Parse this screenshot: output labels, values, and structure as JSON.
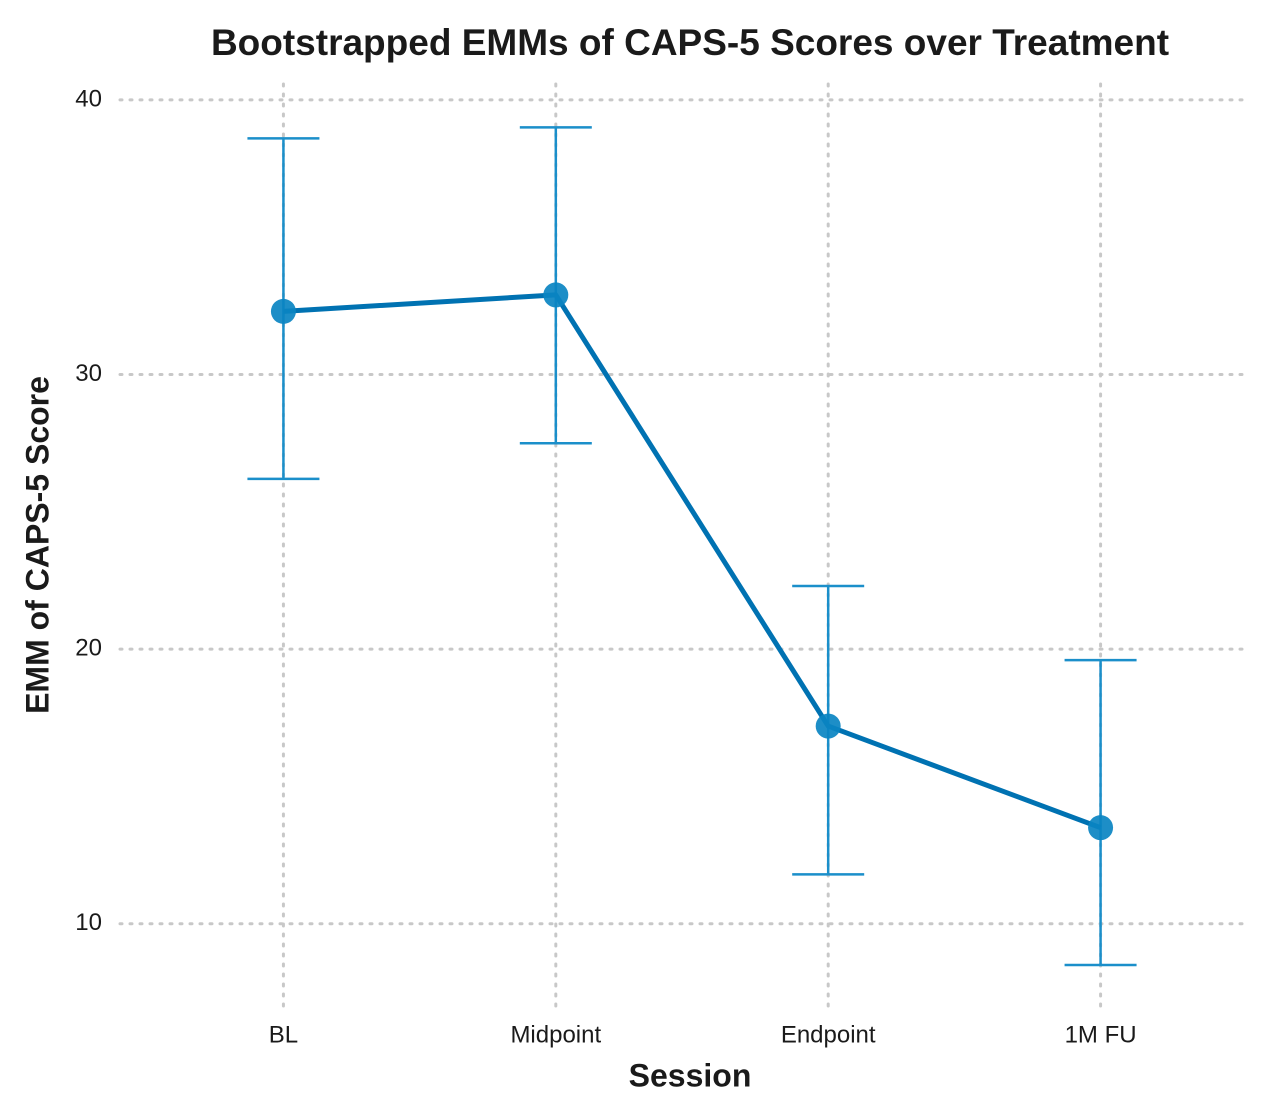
{
  "chart_data": {
    "type": "line",
    "title": "Bootstrapped EMMs of CAPS-5 Scores over Treatment",
    "x_label": "Session",
    "y_label": "EMM of CAPS-5 Score",
    "categories": [
      "BL",
      "Midpoint",
      "Endpoint",
      "1M FU"
    ],
    "series": [
      {
        "color": "#0072b2",
        "point_color": "#0a84c2",
        "errorbar_color": "#1b8fca",
        "values": [
          32.3,
          32.9,
          17.2,
          13.5
        ],
        "lower": [
          26.2,
          27.5,
          11.8,
          8.5
        ],
        "upper": [
          38.6,
          39.0,
          22.3,
          19.6
        ]
      }
    ],
    "ylim": [
      6.97,
      40.58
    ],
    "yticks": [
      10,
      20,
      30,
      40
    ],
    "grid": true
  }
}
